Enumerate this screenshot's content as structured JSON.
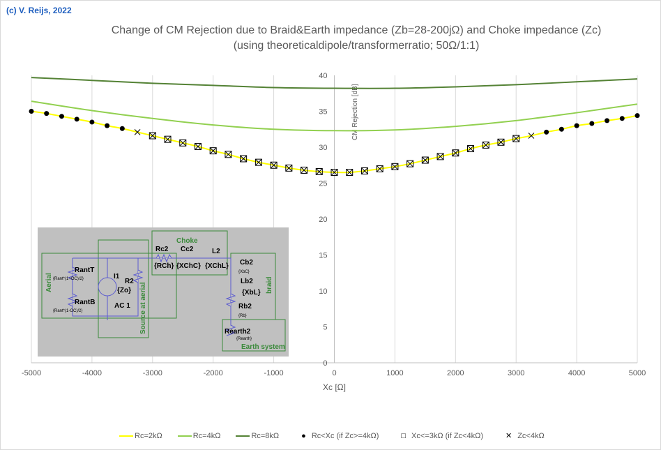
{
  "copyright": "(c) V. Reijs, 2022",
  "chart_data": {
    "type": "line",
    "title": "Change of CM Rejection due to Braid&Earth impedance (Zb=28-200jΩ) and Choke impedance (Zc)",
    "subtitle": "(using theoreticaldipole/transformerratio; 50Ω/1:1)",
    "xlabel": "Xc [Ω]",
    "ylabel": "CM Rejection [dB]",
    "xlim": [
      -5000,
      5000
    ],
    "ylim": [
      0,
      40
    ],
    "xticks": [
      -5000,
      -4000,
      -3000,
      -2000,
      -1000,
      0,
      1000,
      2000,
      3000,
      4000,
      5000
    ],
    "yticks": [
      0,
      5,
      10,
      15,
      20,
      25,
      30,
      35,
      40
    ],
    "grid": "vertical",
    "legend_position": "bottom",
    "series": [
      {
        "name": "Rc=2kΩ",
        "color": "#ffff00",
        "x": [
          -5000,
          -4750,
          -4500,
          -4250,
          -4000,
          -3750,
          -3500,
          -3250,
          -3000,
          -2750,
          -2500,
          -2250,
          -2000,
          -1750,
          -1500,
          -1250,
          -1000,
          -750,
          -500,
          -250,
          0,
          250,
          500,
          750,
          1000,
          1250,
          1500,
          1750,
          2000,
          2250,
          2500,
          2750,
          3000,
          3250,
          3500,
          3750,
          4000,
          4250,
          4500,
          4750,
          5000
        ],
        "y": [
          35.0,
          34.7,
          34.3,
          33.9,
          33.5,
          33.0,
          32.6,
          32.1,
          31.6,
          31.1,
          30.6,
          30.1,
          29.5,
          29.0,
          28.4,
          27.9,
          27.5,
          27.1,
          26.8,
          26.6,
          26.5,
          26.5,
          26.7,
          27.0,
          27.3,
          27.7,
          28.2,
          28.7,
          29.2,
          29.8,
          30.3,
          30.7,
          31.2,
          31.6,
          32.1,
          32.5,
          33.0,
          33.3,
          33.7,
          34.0,
          34.4
        ]
      },
      {
        "name": "Rc=4kΩ",
        "color": "#92d050",
        "x": [
          -5000,
          -4000,
          -3000,
          -2000,
          -1000,
          0,
          1000,
          2000,
          3000,
          4000,
          5000
        ],
        "y": [
          36.4,
          35.1,
          34.0,
          33.1,
          32.5,
          32.3,
          32.4,
          32.9,
          33.7,
          34.8,
          36.0
        ]
      },
      {
        "name": "Rc=8kΩ",
        "color": "#548235",
        "x": [
          -5000,
          -4000,
          -3000,
          -2000,
          -1000,
          0,
          1000,
          2000,
          3000,
          4000,
          5000
        ],
        "y": [
          39.7,
          39.3,
          38.9,
          38.6,
          38.3,
          38.2,
          38.2,
          38.4,
          38.7,
          39.1,
          39.5
        ]
      }
    ],
    "markers": [
      {
        "name": "Rc<Xc (if Zc>=4kΩ)",
        "symbol": "dot",
        "applies_to": "Rc=2kΩ",
        "x_ranges": [
          [
            -5000,
            -3500
          ],
          [
            3500,
            5000
          ]
        ]
      },
      {
        "name": "Xc<=3kΩ (if Zc<4kΩ)",
        "symbol": "square",
        "applies_to": "Rc=2kΩ",
        "x_ranges": [
          [
            -3000,
            3000
          ]
        ]
      },
      {
        "name": "Zc<4kΩ",
        "symbol": "cross",
        "applies_to": "Rc=2kΩ",
        "x_ranges": [
          [
            -3250,
            3250
          ]
        ]
      }
    ]
  },
  "inset": {
    "labels": {
      "choke": "Choke",
      "rc2": "Rc2",
      "rch": "{RCh}",
      "cc2": "Cc2",
      "xchc": "{XChC}",
      "l2": "L2",
      "xchl": "{XChL}",
      "rantt": "RantT",
      "rantt_v": "{Rant*(1+OC)/2}",
      "rantb": "RantB",
      "rantb_v": "{Rant*(1-OC)/2}",
      "aerial": "Aerial",
      "i1": "I1",
      "r2": "R2",
      "zo": "{Zo}",
      "ac1": "AC 1",
      "source": "Source at aerial",
      "cb2": "Cb2",
      "xbc": "{XbC}",
      "lb2": "Lb2",
      "xbl": "{XbL}",
      "rb2": "Rb2",
      "rb": "{Rb}",
      "braid": "braid",
      "rearth2": "Rearth2",
      "rearth": "{Rearth}",
      "earth": "Earth system"
    }
  }
}
